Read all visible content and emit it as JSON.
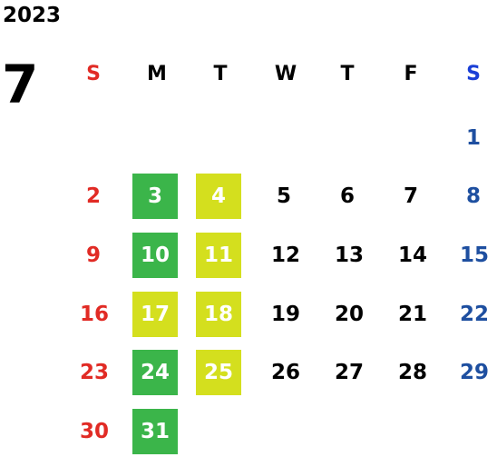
{
  "calendar": {
    "year": "2023",
    "month": "7",
    "weekdays": [
      "S",
      "M",
      "T",
      "W",
      "T",
      "F",
      "S"
    ],
    "highlight_colors": {
      "green": "#3bb54a",
      "lime": "#d4df1e",
      "sunday": "#e12b25",
      "saturday": "#1e4fa0"
    },
    "weeks": [
      [
        "",
        "",
        "",
        "",
        "",
        "",
        "1"
      ],
      [
        "2",
        "3",
        "4",
        "5",
        "6",
        "7",
        "8"
      ],
      [
        "9",
        "10",
        "11",
        "12",
        "13",
        "14",
        "15"
      ],
      [
        "16",
        "17",
        "18",
        "19",
        "20",
        "21",
        "22"
      ],
      [
        "23",
        "24",
        "25",
        "26",
        "27",
        "28",
        "29"
      ],
      [
        "30",
        "31",
        "",
        "",
        "",
        "",
        ""
      ]
    ],
    "highlights": {
      "3": "green",
      "4": "lime",
      "10": "green",
      "11": "lime",
      "17": "lime",
      "18": "lime",
      "24": "green",
      "25": "lime",
      "31": "green"
    }
  }
}
